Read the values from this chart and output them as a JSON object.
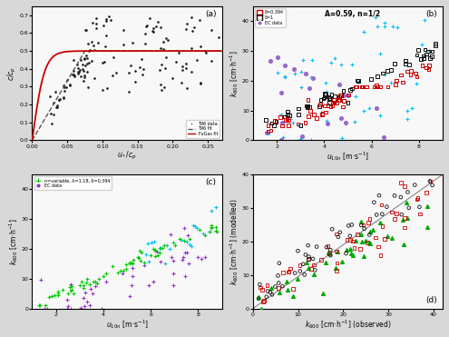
{
  "panel_a": {
    "label": "(a)",
    "xlabel": "u*/c_p",
    "ylabel": "c/c_p",
    "xlim": [
      0,
      0.27
    ],
    "ylim": [
      0,
      0.75
    ],
    "xticks": [
      0,
      0.05,
      0.1,
      0.15,
      0.2,
      0.25
    ],
    "yticks": [
      0,
      0.1,
      0.2,
      0.3,
      0.4,
      0.5,
      0.6,
      0.7
    ],
    "legend_labels": [
      "T96 data",
      "T96 fit",
      "FuGas fit"
    ],
    "scatter_color": "#1a1a1a",
    "fit_color1": "#555555",
    "fit_color2": "#cc0000",
    "bg_color": "#f0f0f0"
  },
  "panel_b": {
    "label": "(b)",
    "xlabel": "u_{10n} [m·s^{-1}]",
    "ylabel": "k_{600} [cm·h^{-1}]",
    "xlim": [
      1,
      9
    ],
    "ylim": [
      0,
      45
    ],
    "annotation": "A=0.59, n=1/2",
    "legend_labels": [
      "δ=0.394",
      "δ=1",
      "EC data"
    ],
    "colors": [
      "#cc0000",
      "#111111",
      "#00bfff"
    ],
    "bg_color": "#f0f0f0"
  },
  "panel_c": {
    "label": "(c)",
    "xlabel": "u_{10n} [m·s^{-1}]",
    "ylabel": "k_{600} [cm·h^{-1}]",
    "xlim": [
      1,
      9
    ],
    "ylim": [
      0,
      45
    ],
    "legend_labels": [
      "n=variable, A=1.18, δ=0.394",
      "EC data"
    ],
    "colors": [
      "#00cc00",
      "#9900cc"
    ],
    "bg_color": "#f0f0f0"
  },
  "panel_d": {
    "label": "(d)",
    "xlabel": "k_{600} [cm·h^{-1}] (observed)",
    "ylabel": "k_{600} [cm·h^{-1}] (modelled)",
    "xlim": [
      0,
      42
    ],
    "ylim": [
      0,
      40
    ],
    "colors": [
      "#cc0000",
      "#111111",
      "#00aa00"
    ],
    "bg_color": "#f0f0f0"
  }
}
